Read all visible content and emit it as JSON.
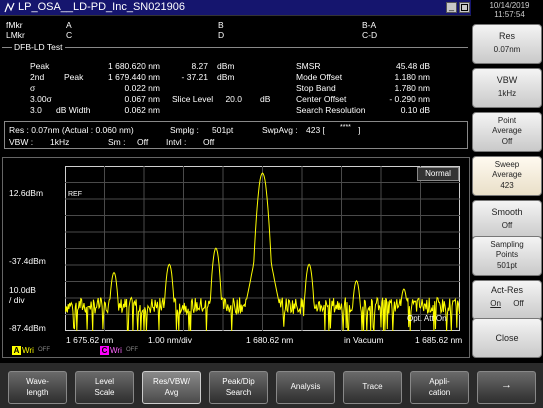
{
  "title": "LP_OSA__LD-PD_Inc_SN021906",
  "clock": {
    "date": "10/14/2019",
    "time": "11:57:54"
  },
  "markers": {
    "fmkr": "fMkr",
    "a": "A",
    "b": "B",
    "ba": "B-A",
    "lmkr": "LMkr",
    "c": "C",
    "d": "D",
    "cd": "C-D"
  },
  "analysis": {
    "section": "DFB-LD Test",
    "peak_label": "Peak",
    "peak_wl": "1 680.620 nm",
    "peak_lvl": "8.27",
    "peak_unit": "dBm",
    "second_label": "2nd",
    "second_sub": "Peak",
    "second_wl": "1 679.440 nm",
    "second_lvl": "- 37.21",
    "second_unit": "dBm",
    "sigma_label": "σ",
    "sigma_val": "0.022 nm",
    "sig3_label": "3.00σ",
    "sig3_val": "0.067 nm",
    "slice_label": "Slice Level",
    "slice_val": "20.0",
    "slice_unit": "dB",
    "w3_label": "3.0",
    "w3_sub": "dB Width",
    "w3_val": "0.062 nm",
    "smsr_label": "SMSR",
    "smsr_val": "45.48 dB",
    "mode_label": "Mode Offset",
    "mode_val": "1.180 nm",
    "stop_label": "Stop Band",
    "stop_val": "1.780 nm",
    "center_label": "Center Offset",
    "center_val": "- 0.290 nm",
    "sres_label": "Search Resolution",
    "sres_val": "0.10 dB"
  },
  "settings": {
    "res": "Res : 0.07nm (Actual : 0.060 nm)",
    "smplg": "Smplg :",
    "smplg_val": "501pt",
    "swp": "SwpAvg :",
    "swp_val": "423 [",
    "swp_stars": "****",
    "swp_end": "]",
    "vbw": "VBW :",
    "vbw_val": "1kHz",
    "sm": "Sm :",
    "sm_val": "Off",
    "intvl": "Intvl :",
    "intvl_val": "Off"
  },
  "graph": {
    "mode": "Normal",
    "ref_tag": "REF",
    "top_level": "12.6dBm",
    "mid_level": "-37.4dBm",
    "scale": "10.0dB",
    "scale_unit": "/ div",
    "bottom_level": "-87.4dBm",
    "opt_att": "Opt. Att On",
    "x_start": "1 675.62 nm",
    "x_div": "1.00 nm/div",
    "x_center": "1 680.62 nm",
    "x_medium": "in Vacuum",
    "x_stop": "1 685.62 nm",
    "trace_a": "A",
    "trace_a_mode": "Wri",
    "trace_a_disp": "OFF",
    "trace_c": "C",
    "trace_c_mode": "Wri",
    "trace_c_disp": "OFF"
  },
  "softkeys": [
    {
      "label": "Res",
      "value": "0.07nm"
    },
    {
      "label": "VBW",
      "value": "1kHz"
    },
    {
      "label": "Point\nAverage",
      "value": "Off"
    },
    {
      "label": "Sweep\nAverage",
      "value": "423"
    },
    {
      "label": "Smooth",
      "value": "Off"
    },
    {
      "label": "Sampling\nPoints",
      "value": "501pt"
    },
    {
      "label": "Act-Res",
      "on": "On",
      "off": "Off"
    },
    {
      "label": "Close"
    }
  ],
  "bottom_keys": [
    {
      "label": "Wave-\nlength"
    },
    {
      "label": "Level\nScale"
    },
    {
      "label": "Res/VBW/\nAvg"
    },
    {
      "label": "Peak/Dip\nSearch"
    },
    {
      "label": "Analysis"
    },
    {
      "label": "Trace"
    },
    {
      "label": "Appli-\ncation"
    },
    {
      "label": "→"
    }
  ],
  "spectrum": {
    "x_range_nm": [
      1675.62,
      1685.62
    ],
    "y_range_dbm": [
      -87.4,
      12.6
    ],
    "peaks": [
      {
        "wl": 1676.86,
        "dbm": -52
      },
      {
        "wl": 1678.26,
        "dbm": -47
      },
      {
        "wl": 1679.44,
        "dbm": -37.2
      },
      {
        "wl": 1680.62,
        "dbm": 8.27
      },
      {
        "wl": 1681.8,
        "dbm": -47
      },
      {
        "wl": 1683.0,
        "dbm": -57
      },
      {
        "wl": 1684.2,
        "dbm": -62
      }
    ]
  },
  "colors": {
    "title_bg": "#15156e",
    "trace": "#ffff00",
    "trace_c": "#ff00ff",
    "grid": "#4a4a4a",
    "frame": "#cfcfcf"
  }
}
